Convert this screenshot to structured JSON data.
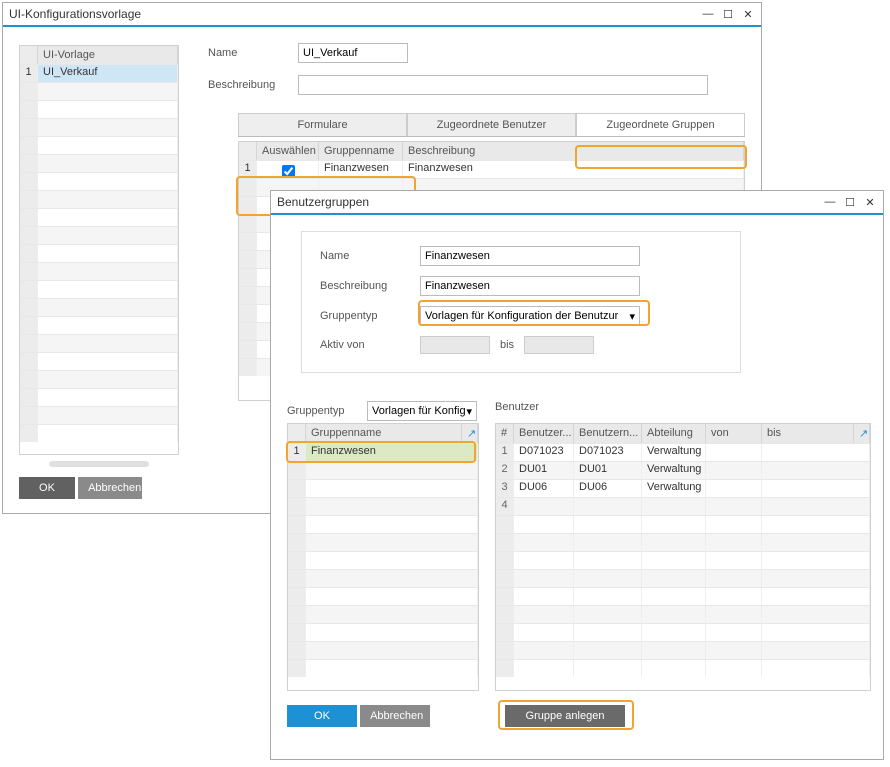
{
  "win1": {
    "title": "UI-Konfigurationsvorlage",
    "templates_hdr": "UI-Vorlage",
    "template_row": "UI_Verkauf",
    "name_lbl": "Name",
    "name_val": "UI_Verkauf",
    "desc_lbl": "Beschreibung",
    "desc_val": "",
    "tabs": {
      "t1": "Formulare",
      "t2": "Zugeordnete Benutzer",
      "t3": "Zugeordnete Gruppen"
    },
    "gcols": {
      "c1": "Auswählen",
      "c2": "Gruppenname",
      "c3": "Beschreibung"
    },
    "grow": {
      "c2": "Finanzwesen",
      "c3": "Finanzwesen"
    },
    "ok": "OK",
    "cancel": "Abbrechen"
  },
  "win2": {
    "title": "Benutzergruppen",
    "name_lbl": "Name",
    "name_val": "Finanzwesen",
    "desc_lbl": "Beschreibung",
    "desc_val": "Finanzwesen",
    "gtype_lbl": "Gruppentyp",
    "gtype_val": "Vorlagen für Konfiguration der Benutzur",
    "active_lbl": "Aktiv von",
    "bis": "bis",
    "gtype2_lbl": "Gruppentyp",
    "gtype2_val": "Vorlagen für Konfig",
    "users_lbl": "Benutzer",
    "gn_hdr": "Gruppenname",
    "gn_row": "Finanzwesen",
    "ucols": {
      "c0": "#",
      "c1": "Benutzer...",
      "c2": "Benutzern...",
      "c3": "Abteilung",
      "c4": "von",
      "c5": "bis"
    },
    "urows": [
      {
        "n": "1",
        "a": "D071023",
        "b": "D071023",
        "c": "Verwaltung"
      },
      {
        "n": "2",
        "a": "DU01",
        "b": "DU01",
        "c": "Verwaltung"
      },
      {
        "n": "3",
        "a": "DU06",
        "b": "DU06",
        "c": "Verwaltung"
      },
      {
        "n": "4",
        "a": "",
        "b": "",
        "c": ""
      }
    ],
    "ok": "OK",
    "cancel": "Abbrechen",
    "create": "Gruppe anlegen"
  },
  "highlight_color": "#f2a52e"
}
